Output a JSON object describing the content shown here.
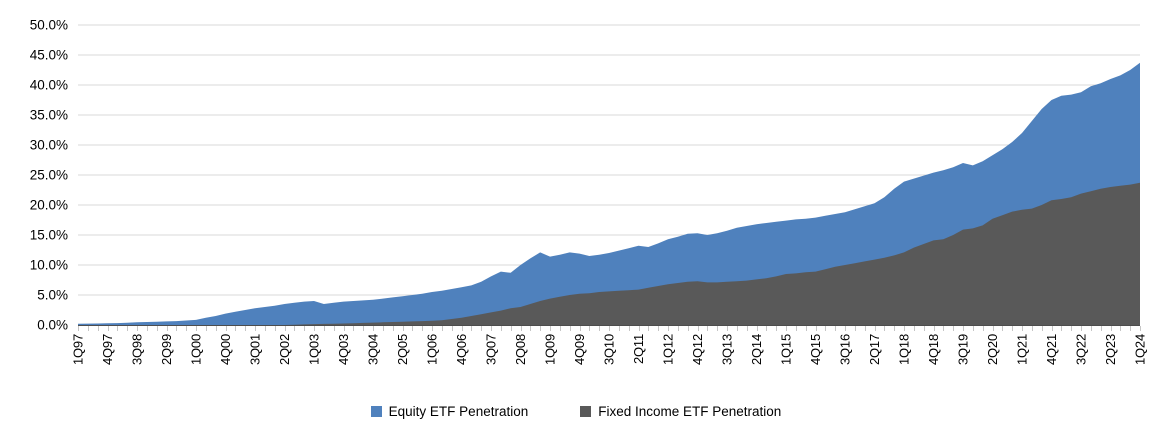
{
  "chart_data": {
    "type": "area",
    "title": "",
    "xlabel": "",
    "ylabel": "",
    "ylim": [
      0,
      50
    ],
    "y_tick_step": 5,
    "y_tick_labels": [
      "0.0%",
      "5.0%",
      "10.0%",
      "15.0%",
      "20.0%",
      "25.0%",
      "30.0%",
      "35.0%",
      "40.0%",
      "45.0%",
      "50.0%"
    ],
    "x_label_every": 3,
    "grid": true,
    "legend_position": "bottom",
    "categories": [
      "1Q97",
      "2Q97",
      "3Q97",
      "4Q97",
      "1Q98",
      "2Q98",
      "3Q98",
      "4Q98",
      "1Q99",
      "2Q99",
      "3Q99",
      "4Q99",
      "1Q00",
      "2Q00",
      "3Q00",
      "4Q00",
      "1Q01",
      "2Q01",
      "3Q01",
      "4Q01",
      "1Q02",
      "2Q02",
      "3Q02",
      "4Q02",
      "1Q03",
      "2Q03",
      "3Q03",
      "4Q03",
      "1Q04",
      "2Q04",
      "3Q04",
      "4Q04",
      "1Q05",
      "2Q05",
      "3Q05",
      "4Q05",
      "1Q06",
      "2Q06",
      "3Q06",
      "4Q06",
      "1Q07",
      "2Q07",
      "3Q07",
      "4Q07",
      "1Q08",
      "2Q08",
      "3Q08",
      "4Q08",
      "1Q09",
      "2Q09",
      "3Q09",
      "4Q09",
      "1Q10",
      "2Q10",
      "3Q10",
      "4Q10",
      "1Q11",
      "2Q11",
      "3Q11",
      "4Q11",
      "1Q12",
      "2Q12",
      "3Q12",
      "4Q12",
      "1Q13",
      "2Q13",
      "3Q13",
      "4Q13",
      "1Q14",
      "2Q14",
      "3Q14",
      "4Q14",
      "1Q15",
      "2Q15",
      "3Q15",
      "4Q15",
      "1Q16",
      "2Q16",
      "3Q16",
      "4Q16",
      "1Q17",
      "2Q17",
      "3Q17",
      "4Q17",
      "1Q18",
      "2Q18",
      "3Q18",
      "4Q18",
      "1Q19",
      "2Q19",
      "3Q19",
      "4Q19",
      "1Q20",
      "2Q20",
      "3Q20",
      "4Q20",
      "1Q21",
      "2Q21",
      "3Q21",
      "4Q21",
      "1Q22",
      "2Q22",
      "3Q22",
      "4Q22",
      "1Q23",
      "2Q23",
      "3Q23",
      "4Q23",
      "1Q24"
    ],
    "series": [
      {
        "name": "Equity ETF Penetration",
        "color": "#4F81BD",
        "values": [
          0.2,
          0.22,
          0.25,
          0.3,
          0.32,
          0.38,
          0.45,
          0.5,
          0.55,
          0.6,
          0.65,
          0.75,
          0.85,
          1.2,
          1.5,
          1.9,
          2.2,
          2.5,
          2.8,
          3.0,
          3.2,
          3.5,
          3.7,
          3.9,
          4.0,
          3.5,
          3.7,
          3.9,
          4.0,
          4.1,
          4.2,
          4.4,
          4.6,
          4.8,
          5.0,
          5.2,
          5.5,
          5.7,
          6.0,
          6.3,
          6.6,
          7.2,
          8.1,
          8.9,
          8.7,
          10.0,
          11.1,
          12.1,
          11.4,
          11.7,
          12.1,
          11.9,
          11.5,
          11.7,
          12.0,
          12.4,
          12.8,
          13.2,
          13.0,
          13.6,
          14.3,
          14.7,
          15.2,
          15.3,
          15.0,
          15.3,
          15.7,
          16.2,
          16.5,
          16.8,
          17.0,
          17.2,
          17.4,
          17.6,
          17.7,
          17.9,
          18.2,
          18.5,
          18.8,
          19.3,
          19.8,
          20.3,
          21.3,
          22.7,
          23.9,
          24.4,
          24.9,
          25.4,
          25.8,
          26.3,
          27.0,
          26.6,
          27.3,
          28.3,
          29.3,
          30.5,
          32.0,
          34.0,
          36.0,
          37.5,
          38.2,
          38.4,
          38.8,
          39.8,
          40.3,
          41.0,
          41.6,
          42.5,
          43.7
        ]
      },
      {
        "name": "Fixed Income ETF Penetration",
        "color": "#595959",
        "values": [
          0,
          0,
          0,
          0,
          0,
          0,
          0,
          0,
          0,
          0,
          0,
          0,
          0,
          0,
          0,
          0,
          0,
          0,
          0,
          0,
          0,
          0,
          0.05,
          0.1,
          0.15,
          0.18,
          0.2,
          0.25,
          0.3,
          0.35,
          0.4,
          0.45,
          0.5,
          0.55,
          0.6,
          0.65,
          0.7,
          0.8,
          1.0,
          1.2,
          1.5,
          1.8,
          2.1,
          2.4,
          2.8,
          3.0,
          3.5,
          4.0,
          4.4,
          4.7,
          5.0,
          5.2,
          5.3,
          5.5,
          5.6,
          5.7,
          5.8,
          5.9,
          6.2,
          6.5,
          6.8,
          7.0,
          7.2,
          7.3,
          7.1,
          7.1,
          7.2,
          7.3,
          7.4,
          7.6,
          7.8,
          8.1,
          8.5,
          8.6,
          8.8,
          8.9,
          9.3,
          9.7,
          10.0,
          10.3,
          10.6,
          10.9,
          11.2,
          11.6,
          12.1,
          12.9,
          13.5,
          14.1,
          14.3,
          15.0,
          15.9,
          16.1,
          16.6,
          17.7,
          18.3,
          18.9,
          19.2,
          19.4,
          20.0,
          20.8,
          21.0,
          21.3,
          21.9,
          22.3,
          22.7,
          23.0,
          23.2,
          23.4,
          23.7
        ]
      }
    ]
  },
  "colors": {
    "background": "#FFFFFF",
    "gridline": "#D9D9D9",
    "axis_line": "#4D4D4D",
    "tick_mark": "#C6C6C6",
    "label_text": "#000000"
  }
}
